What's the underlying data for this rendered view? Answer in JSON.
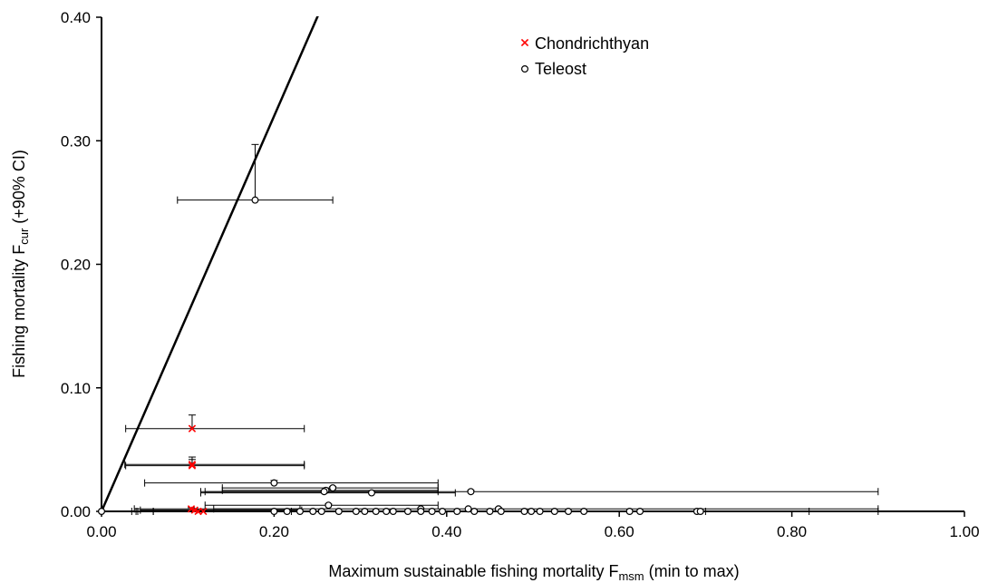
{
  "chart_data": {
    "type": "scatter",
    "xlabel": "Maximum sustainable fishing mortality F",
    "xlabel_sub": "msm",
    "xlabel_suffix": " (min to max)",
    "ylabel": "Fishing mortality F",
    "ylabel_sub": "cur",
    "ylabel_suffix": " (+90% CI)",
    "xlim": [
      0,
      1.0
    ],
    "ylim": [
      0,
      0.4
    ],
    "x_ticks": [
      "0.00",
      "0.20",
      "0.40",
      "0.60",
      "0.80",
      "1.00"
    ],
    "y_ticks": [
      "0.00",
      "0.10",
      "0.20",
      "0.30",
      "0.40"
    ],
    "x_tick_values": [
      0,
      0.2,
      0.4,
      0.6,
      0.8,
      1.0
    ],
    "y_tick_values": [
      0,
      0.1,
      0.2,
      0.3,
      0.4
    ],
    "reference_line": {
      "slope": 1.6
    },
    "legend_position": "top-right",
    "colors": {
      "chondrichthyan": "#ff0000",
      "teleost": "#000000",
      "axis": "#000000"
    },
    "series": [
      {
        "name": "Chondrichthyan",
        "marker": "x",
        "points": [
          {
            "x": 0.105,
            "y": 0.067,
            "xmin": 0.028,
            "xmax": 0.235,
            "yupper": 0.078
          },
          {
            "x": 0.105,
            "y": 0.038,
            "xmin": 0.027,
            "xmax": 0.235,
            "yupper": 0.044
          },
          {
            "x": 0.105,
            "y": 0.037,
            "xmin": 0.028,
            "xmax": 0.235,
            "yupper": 0.042
          },
          {
            "x": 0.104,
            "y": 0.002,
            "xmin": 0.038,
            "xmax": 0.23,
            "yupper": 0.003
          },
          {
            "x": 0.108,
            "y": 0.001,
            "xmin": 0.045,
            "xmax": 0.232,
            "yupper": 0.002
          },
          {
            "x": 0.112,
            "y": 0.0,
            "xmin": 0.042,
            "xmax": 0.215,
            "yupper": 0.001
          },
          {
            "x": 0.118,
            "y": 0.0,
            "xmin": 0.06,
            "xmax": 0.22,
            "yupper": 0.001
          }
        ]
      },
      {
        "name": "Teleost",
        "marker": "circle",
        "points": [
          {
            "x": 0.0,
            "y": 0.0
          },
          {
            "x": 0.178,
            "y": 0.252,
            "xmin": 0.088,
            "xmax": 0.268,
            "yupper": 0.297
          },
          {
            "x": 0.2,
            "y": 0.023,
            "xmin": 0.05,
            "xmax": 0.39,
            "yupper": 0.025
          },
          {
            "x": 0.268,
            "y": 0.019,
            "xmin": 0.14,
            "xmax": 0.39,
            "yupper": 0.02
          },
          {
            "x": 0.26,
            "y": 0.017,
            "xmin": 0.14,
            "xmax": 0.39,
            "yupper": 0.018
          },
          {
            "x": 0.258,
            "y": 0.016,
            "xmin": 0.12,
            "xmax": 0.39,
            "yupper": 0.017
          },
          {
            "x": 0.313,
            "y": 0.015,
            "xmin": 0.115,
            "xmax": 0.41,
            "yupper": 0.016
          },
          {
            "x": 0.428,
            "y": 0.016,
            "xmin": 0.115,
            "xmax": 0.9,
            "yupper": 0.017
          },
          {
            "x": 0.263,
            "y": 0.005,
            "xmin": 0.12,
            "xmax": 0.39,
            "yupper": 0.006
          },
          {
            "x": 0.46,
            "y": 0.002,
            "xmin": 0.13,
            "xmax": 0.9,
            "yupper": 0.003
          },
          {
            "x": 0.37,
            "y": 0.002
          },
          {
            "x": 0.425,
            "y": 0.002
          },
          {
            "x": 0.2,
            "y": 0.0,
            "xmin": 0.035,
            "xmax": 0.9
          },
          {
            "x": 0.215,
            "y": 0.0,
            "xmin": 0.04,
            "xmax": 0.82
          },
          {
            "x": 0.23,
            "y": 0.0,
            "xmin": 0.06,
            "xmax": 0.7
          },
          {
            "x": 0.245,
            "y": 0.0
          },
          {
            "x": 0.255,
            "y": 0.0
          },
          {
            "x": 0.275,
            "y": 0.0
          },
          {
            "x": 0.295,
            "y": 0.0
          },
          {
            "x": 0.305,
            "y": 0.0
          },
          {
            "x": 0.318,
            "y": 0.0
          },
          {
            "x": 0.33,
            "y": 0.0
          },
          {
            "x": 0.338,
            "y": 0.0
          },
          {
            "x": 0.355,
            "y": 0.0
          },
          {
            "x": 0.37,
            "y": 0.0
          },
          {
            "x": 0.383,
            "y": 0.0
          },
          {
            "x": 0.395,
            "y": 0.0
          },
          {
            "x": 0.412,
            "y": 0.0
          },
          {
            "x": 0.432,
            "y": 0.0
          },
          {
            "x": 0.45,
            "y": 0.0
          },
          {
            "x": 0.463,
            "y": 0.0
          },
          {
            "x": 0.49,
            "y": 0.0
          },
          {
            "x": 0.498,
            "y": 0.0
          },
          {
            "x": 0.508,
            "y": 0.0
          },
          {
            "x": 0.525,
            "y": 0.0
          },
          {
            "x": 0.541,
            "y": 0.0
          },
          {
            "x": 0.559,
            "y": 0.0
          },
          {
            "x": 0.612,
            "y": 0.0
          },
          {
            "x": 0.624,
            "y": 0.0
          },
          {
            "x": 0.69,
            "y": 0.0
          },
          {
            "x": 0.694,
            "y": 0.0
          }
        ]
      }
    ]
  }
}
